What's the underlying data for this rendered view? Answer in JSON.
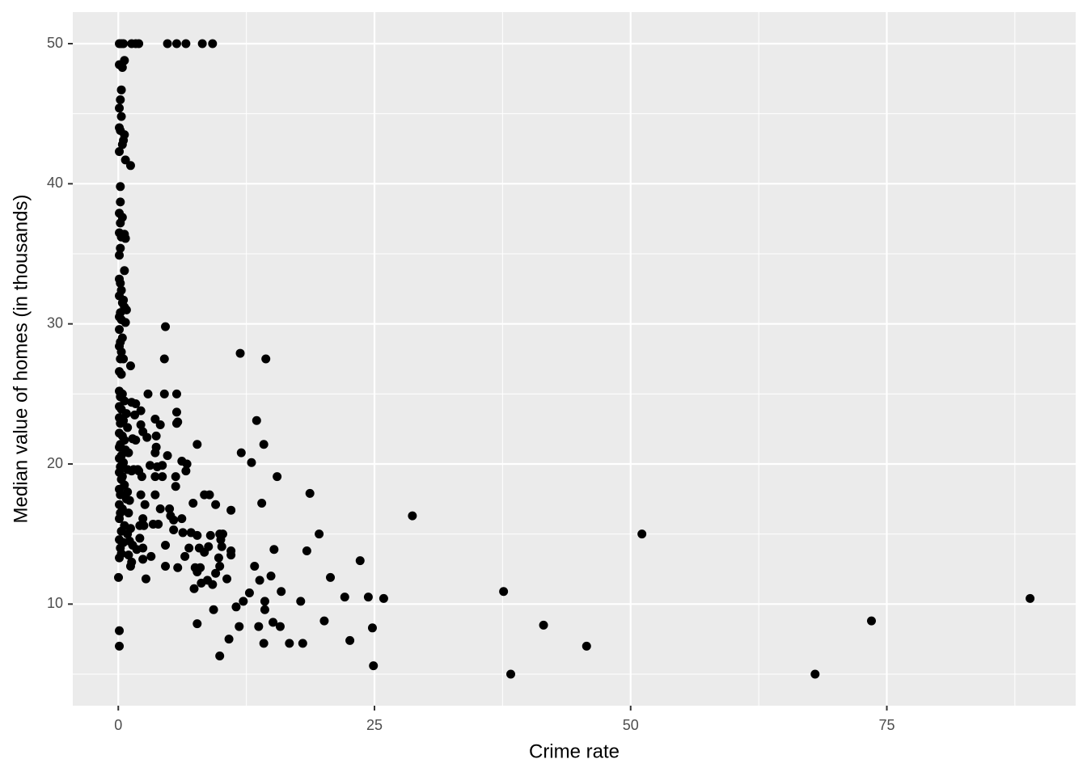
{
  "chart_data": {
    "type": "scatter",
    "x_label": "Crime rate",
    "y_label": "Median value of homes (in thousands)",
    "color": "#000000",
    "xlim": [
      -4.44,
      93.43
    ],
    "ylim": [
      2.75,
      52.25
    ],
    "xticks": [
      0,
      25,
      50,
      75
    ],
    "yticks": [
      10,
      20,
      30,
      40,
      50
    ],
    "x_minor_ticks": [
      12.5,
      37.5,
      62.5,
      87.5
    ],
    "y_minor_ticks": [
      5,
      15,
      25,
      35,
      45
    ],
    "grid": true,
    "x": [
      88.98,
      73.5,
      68.0,
      51.1,
      45.7,
      41.5,
      38.3,
      37.6,
      28.7,
      25.9,
      24.9,
      24.8,
      24.4,
      23.6,
      22.6,
      22.1,
      20.7,
      20.1,
      19.6,
      18.7,
      18.4,
      18.0,
      17.8,
      16.7,
      15.9,
      15.8,
      15.5,
      15.2,
      15.1,
      14.9,
      14.4,
      14.3,
      14.3,
      14.2,
      14.2,
      14.0,
      13.8,
      13.7,
      13.5,
      13.3,
      13.0,
      12.8,
      12.2,
      11.9,
      12.0,
      11.8,
      11.5,
      11.0,
      11.0,
      11.0,
      10.8,
      10.6,
      10.2,
      10.1,
      10.0,
      9.9,
      9.9,
      9.8,
      9.9,
      9.5,
      9.5,
      9.3,
      9.2,
      9.2,
      9.0,
      8.9,
      8.8,
      8.7,
      8.4,
      8.4,
      8.2,
      8.1,
      8.0,
      7.9,
      7.7,
      7.7,
      7.7,
      7.7,
      7.5,
      7.4,
      7.3,
      7.1,
      6.9,
      6.7,
      6.6,
      6.6,
      6.5,
      6.3,
      6.2,
      6.2,
      5.7,
      5.8,
      5.7,
      5.7,
      5.7,
      5.6,
      5.6,
      5.4,
      5.4,
      5.8,
      5.1,
      5.0,
      4.8,
      4.8,
      4.6,
      4.5,
      4.5,
      4.6,
      4.6,
      4.3,
      4.3,
      4.1,
      4.1,
      3.9,
      3.8,
      3.7,
      3.7,
      3.6,
      3.6,
      3.6,
      3.6,
      3.4,
      3.2,
      3.1,
      2.9,
      2.8,
      2.7,
      2.5,
      2.6,
      2.4,
      2.4,
      2.4,
      2.4,
      2.3,
      2.2,
      2.1,
      2.1,
      2.0,
      2.0,
      1.7,
      1.3,
      2.2,
      2.2,
      1.8,
      1.7,
      1.3,
      1.2,
      1.2,
      1.3,
      1.2,
      1.0,
      0.1,
      0.3,
      0.5,
      0.6,
      0.4,
      0.1,
      0.3,
      0.2,
      0.1,
      0.3,
      0.1,
      0.2,
      0.6,
      0.5,
      0.4,
      0.1,
      0.7,
      0.2,
      0.2,
      0.1,
      0.4,
      0.2,
      0.1,
      0.6,
      0.7,
      0.3,
      0.2,
      0.1,
      0.6,
      0.1,
      0.2,
      0.3,
      0.1,
      0.5,
      0.8,
      0.6,
      0.4,
      0.2,
      0.1,
      0.7,
      0.3,
      0.1,
      0.4,
      0.2,
      0.1,
      0.3,
      0.2,
      0.5,
      0.1,
      0.3,
      0.1,
      0.4,
      0.2,
      0.6,
      0.1,
      0.3,
      0.8,
      0.1,
      0.5,
      0.2,
      0.9,
      0.1,
      0.4,
      0.6,
      0.2,
      0.1,
      0.7,
      0.3,
      0.1,
      0.5,
      0.2,
      0.9,
      0.1,
      0.4,
      0.3,
      0.6,
      0.1,
      0.2,
      0.8,
      0.1,
      0.4,
      0.2,
      0.1,
      0.6,
      0.3,
      0.9,
      0.1,
      0.5,
      0.2,
      0.3,
      0.1,
      0.02,
      0.1,
      0.1,
      1.1,
      1.2,
      1.5,
      1.1,
      1.4,
      1.6,
      1.7,
      1.3,
      1.0,
      0.9,
      1.4,
      1.9,
      1.0
    ],
    "values": [
      10.4,
      8.8,
      5.0,
      15.0,
      7.0,
      8.5,
      5.0,
      10.9,
      16.3,
      10.4,
      5.6,
      8.3,
      10.5,
      13.1,
      7.4,
      10.5,
      11.9,
      8.8,
      15.0,
      17.9,
      13.8,
      7.2,
      10.2,
      7.2,
      10.9,
      8.4,
      19.1,
      13.9,
      8.7,
      12.0,
      27.5,
      9.6,
      10.2,
      7.2,
      21.4,
      17.2,
      11.7,
      8.4,
      23.1,
      12.7,
      20.1,
      10.8,
      10.2,
      27.9,
      20.8,
      8.4,
      9.8,
      13.5,
      13.8,
      16.7,
      7.5,
      11.8,
      15.0,
      14.1,
      14.6,
      6.3,
      12.7,
      13.3,
      15.0,
      12.2,
      17.1,
      9.6,
      50,
      11.4,
      14.9,
      17.8,
      14.1,
      11.7,
      13.7,
      17.8,
      50,
      11.5,
      12.6,
      14.0,
      8.6,
      12.3,
      14.9,
      21.4,
      12.6,
      11.1,
      17.2,
      15.1,
      14.0,
      20.0,
      19.5,
      50,
      13.4,
      15.1,
      16.1,
      20.2,
      50,
      23.0,
      22.9,
      25.0,
      23.7,
      19.1,
      18.4,
      16.0,
      15.3,
      12.6,
      16.3,
      16.8,
      20.6,
      50,
      29.8,
      27.5,
      25.0,
      14.2,
      12.7,
      19.1,
      19.9,
      16.8,
      22.8,
      15.7,
      19.8,
      22.0,
      21.2,
      20.8,
      17.8,
      19.1,
      23.2,
      15.7,
      13.4,
      19.9,
      25.0,
      21.9,
      11.8,
      15.6,
      17.1,
      16.1,
      14.0,
      22.3,
      13.2,
      19.1,
      17.8,
      14.7,
      15.6,
      19.5,
      50,
      50,
      50,
      22.8,
      23.8,
      13.9,
      21.7,
      24.4,
      27.0,
      41.3,
      19.5,
      12.7,
      13.5,
      50,
      50,
      50,
      48.8,
      48.3,
      48.5,
      46.7,
      46,
      45.4,
      44.8,
      44,
      43.8,
      43.5,
      43.1,
      42.8,
      42.3,
      41.7,
      39.8,
      38.7,
      37.9,
      37.6,
      37.2,
      36.5,
      36.4,
      36.1,
      36.2,
      35.4,
      34.9,
      33.8,
      33.2,
      32.9,
      32.4,
      32,
      31.7,
      31,
      31.2,
      31.5,
      30.8,
      30.5,
      30.1,
      30.3,
      29.6,
      29,
      28.7,
      28.4,
      28,
      27.5,
      27.5,
      26.6,
      26.4,
      25.2,
      25,
      24.8,
      24.5,
      24.1,
      23.9,
      23.6,
      23.3,
      23.1,
      22.9,
      22.6,
      22.2,
      22,
      21.7,
      21.4,
      21.2,
      21,
      20.6,
      20.4,
      20.1,
      19.8,
      19.6,
      19.4,
      19.1,
      18.9,
      18.5,
      18.2,
      17.8,
      17.5,
      17.1,
      16.8,
      16.5,
      16.1,
      15.6,
      15.2,
      15.0,
      14.6,
      14.4,
      14,
      13.6,
      13.3,
      11.9,
      8.1,
      7.0,
      14.5,
      15.4,
      19.6,
      17.4,
      21.8,
      23.5,
      24.3,
      13.0,
      16.5,
      18.0,
      14.2,
      19.6,
      20.8
    ]
  }
}
